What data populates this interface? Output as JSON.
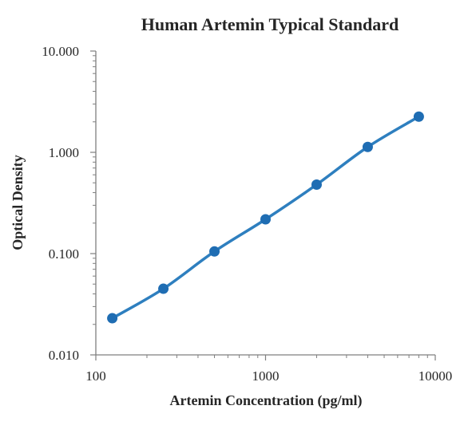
{
  "chart_data": {
    "type": "scatter",
    "title": "Human Artemin Typical Standard",
    "xlabel": "Artemin Concentration (pg/ml)",
    "ylabel": "Optical Density",
    "x_scale": "log",
    "y_scale": "log",
    "xlim": [
      100,
      10000
    ],
    "ylim": [
      0.01,
      10
    ],
    "x_ticks": [
      100,
      1000,
      10000
    ],
    "x_tick_labels": [
      "100",
      "1000",
      "10000"
    ],
    "y_ticks": [
      0.01,
      0.1,
      1,
      10
    ],
    "y_tick_labels": [
      "0.010",
      "0.100",
      "1.000",
      "10.000"
    ],
    "grid": false,
    "legend": "none",
    "series": [
      {
        "x": [
          125,
          250,
          500,
          1000,
          2000,
          4000,
          8000
        ],
        "y": [
          0.023,
          0.045,
          0.105,
          0.218,
          0.48,
          1.13,
          2.25
        ],
        "trendline": true
      }
    ],
    "colors": {
      "series": "#1f6db3",
      "line": "#2e7fbf",
      "axis": "#7f7f7f",
      "text": "#262626"
    }
  }
}
